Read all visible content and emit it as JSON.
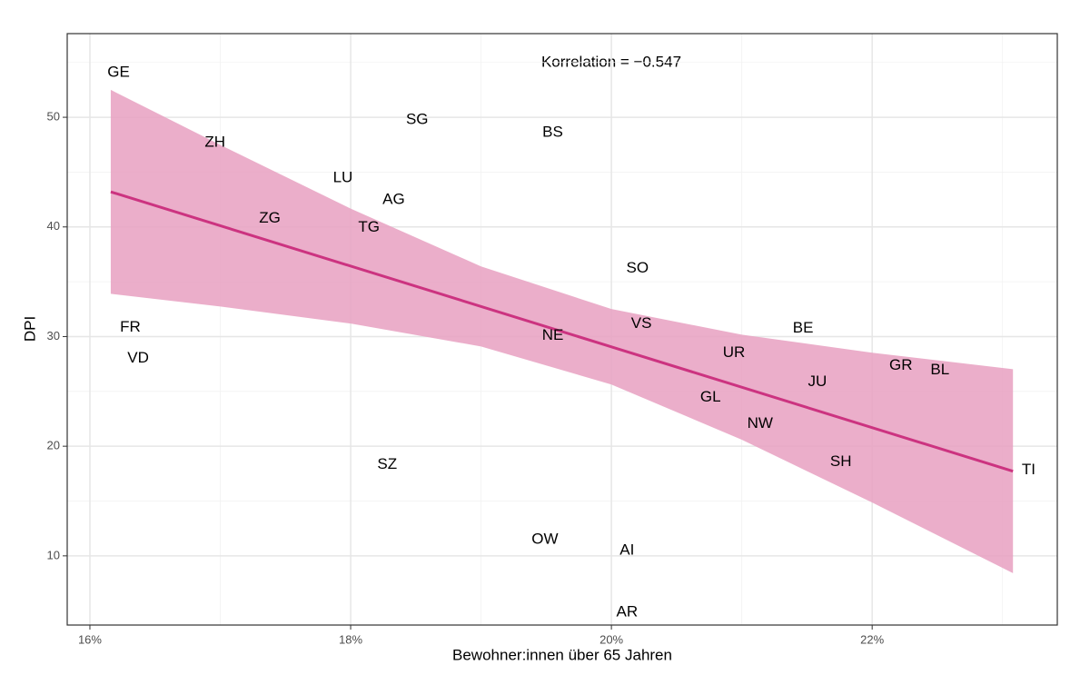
{
  "chart_data": {
    "type": "scatter",
    "x_label": "Bewohner:innen über 65 Jahren",
    "y_label": "DPI",
    "annotation": "Korrelation = −0.547",
    "labels": [
      "GE",
      "ZH",
      "SG",
      "BS",
      "LU",
      "AG",
      "ZG",
      "TG",
      "SO",
      "FR",
      "VD",
      "VS",
      "NE",
      "BE",
      "UR",
      "GR",
      "BL",
      "JU",
      "GL",
      "NW",
      "SH",
      "TI",
      "SZ",
      "OW",
      "AI",
      "AR"
    ],
    "x": [
      16.22,
      16.96,
      18.51,
      19.55,
      17.94,
      18.33,
      17.38,
      18.14,
      20.2,
      16.31,
      16.37,
      20.23,
      19.55,
      21.47,
      20.94,
      22.22,
      22.52,
      21.58,
      20.76,
      21.14,
      21.76,
      23.2,
      18.28,
      19.49,
      20.12,
      20.12
    ],
    "y": [
      54.07,
      47.68,
      49.75,
      48.59,
      44.44,
      42.45,
      40.75,
      39.92,
      36.22,
      30.83,
      28.01,
      31.16,
      30.08,
      30.75,
      28.51,
      27.34,
      26.93,
      25.85,
      24.44,
      22.03,
      18.55,
      17.8,
      18.3,
      11.49,
      10.5,
      4.85
    ],
    "fit_x": [
      16.16,
      23.08
    ],
    "fit_y": [
      43.2,
      17.72
    ],
    "band_x": [
      16.16,
      17,
      18,
      19,
      20,
      21,
      22,
      23.08
    ],
    "band_lower": [
      33.9,
      32.74,
      31.19,
      29.1,
      25.63,
      20.59,
      14.87,
      8.42
    ],
    "band_upper": [
      52.5,
      47.48,
      41.67,
      36.4,
      32.51,
      30.17,
      28.53,
      27.02
    ],
    "fit_color": "#cc3380",
    "band_color": "#e7a0c1",
    "xlim": [
      15.826,
      23.42
    ],
    "ylim": [
      3.69,
      57.63
    ],
    "xticks": [
      {
        "value": 16,
        "label": "16%"
      },
      {
        "value": 18,
        "label": "18%"
      },
      {
        "value": 20,
        "label": "20%"
      },
      {
        "value": 22,
        "label": "22%"
      }
    ],
    "yticks": [
      10,
      20,
      30,
      40,
      50
    ],
    "xminor": [
      17,
      19,
      21,
      23
    ],
    "yminor": [
      15,
      25,
      35,
      45,
      55
    ],
    "grid": true
  }
}
